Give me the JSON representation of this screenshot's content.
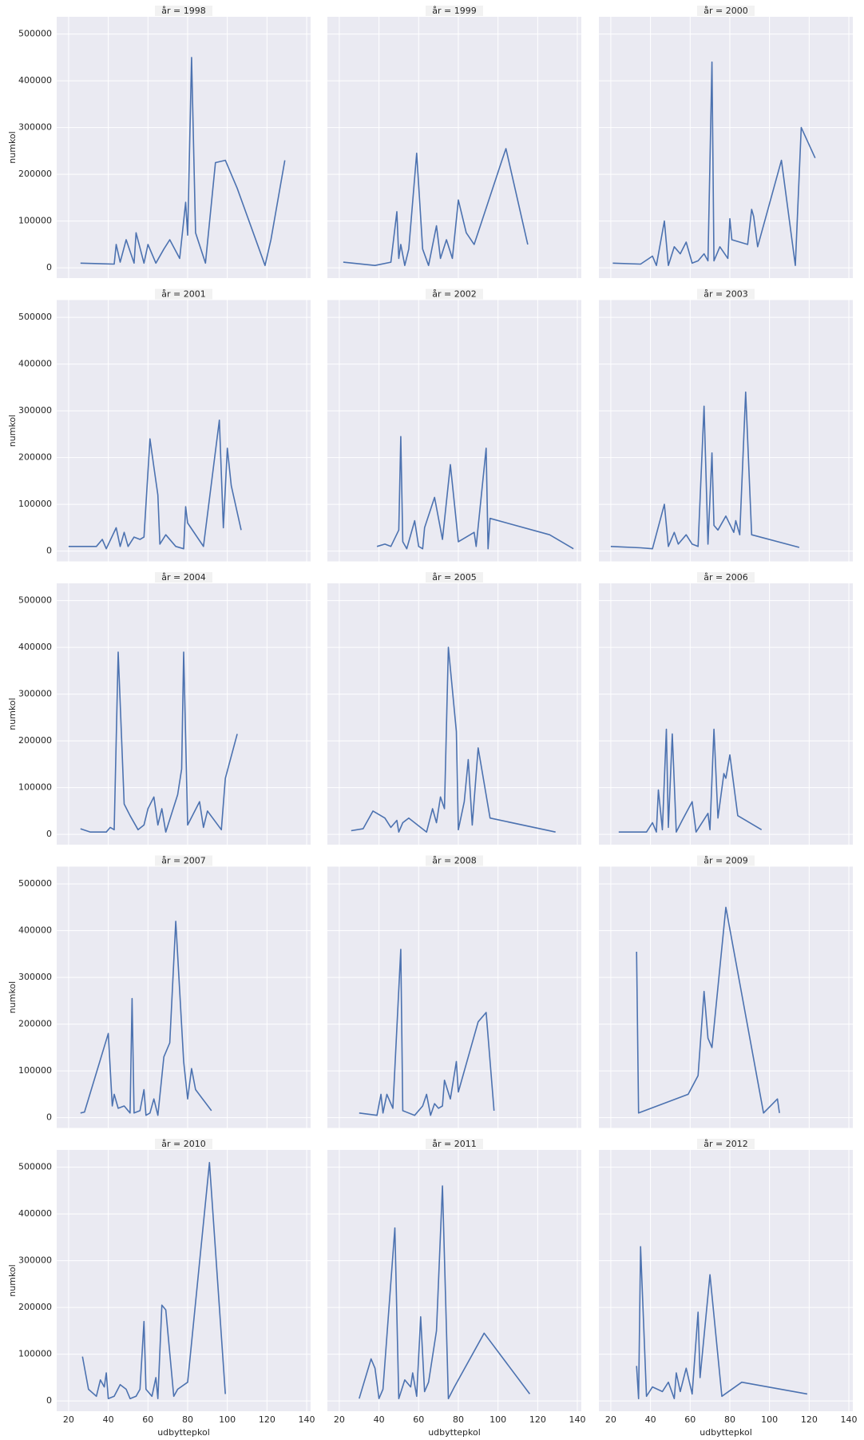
{
  "chart_data": [
    {
      "type": "line",
      "title": "år = 1998",
      "ylabel": "numkol",
      "color": "#4c72b0",
      "xlim": [
        14,
        142
      ],
      "ylim": [
        -22000,
        537000
      ],
      "xticks": [
        20,
        40,
        60,
        80,
        100,
        120,
        140
      ],
      "yticks": [
        0,
        100000,
        200000,
        300000,
        400000,
        500000
      ],
      "x": [
        26,
        43,
        44,
        46,
        49,
        53,
        54,
        58,
        60,
        64,
        68,
        71,
        76,
        79,
        80,
        82,
        84,
        89,
        94,
        99,
        105,
        119,
        122,
        129
      ],
      "values": [
        10000,
        8000,
        50000,
        12000,
        60000,
        10000,
        75000,
        10000,
        50000,
        10000,
        40000,
        60000,
        20000,
        140000,
        70000,
        450000,
        75000,
        10000,
        225000,
        230000,
        170000,
        5000,
        60000,
        230000
      ]
    },
    {
      "type": "line",
      "title": "år = 1999",
      "color": "#4c72b0",
      "xlim": [
        14,
        142
      ],
      "ylim": [
        -22000,
        537000
      ],
      "xticks": [
        20,
        40,
        60,
        80,
        100,
        120,
        140
      ],
      "yticks": [
        0,
        100000,
        200000,
        300000,
        400000,
        500000
      ],
      "x": [
        22,
        38,
        46,
        49,
        50,
        51,
        53,
        55,
        59,
        62,
        65,
        69,
        71,
        74,
        77,
        80,
        84,
        88,
        102,
        104,
        115
      ],
      "values": [
        12000,
        5000,
        12000,
        120000,
        20000,
        50000,
        5000,
        40000,
        245000,
        40000,
        5000,
        90000,
        20000,
        60000,
        20000,
        145000,
        75000,
        50000,
        230000,
        255000,
        50000
      ]
    },
    {
      "type": "line",
      "title": "år = 2000",
      "color": "#4c72b0",
      "xlim": [
        14,
        142
      ],
      "ylim": [
        -22000,
        537000
      ],
      "xticks": [
        20,
        40,
        60,
        80,
        100,
        120,
        140
      ],
      "yticks": [
        0,
        100000,
        200000,
        300000,
        400000,
        500000
      ],
      "x": [
        21,
        35,
        41,
        43,
        47,
        49,
        52,
        55,
        58,
        61,
        64,
        67,
        69,
        71,
        72,
        75,
        79,
        80,
        81,
        89,
        91,
        92,
        94,
        106,
        113,
        116,
        123
      ],
      "values": [
        10000,
        8000,
        25000,
        5000,
        100000,
        5000,
        45000,
        30000,
        55000,
        10000,
        15000,
        30000,
        15000,
        440000,
        15000,
        45000,
        20000,
        105000,
        60000,
        50000,
        125000,
        110000,
        45000,
        230000,
        5000,
        300000,
        235000
      ]
    },
    {
      "type": "line",
      "title": "år = 2001",
      "ylabel": "numkol",
      "color": "#4c72b0",
      "xlim": [
        14,
        142
      ],
      "ylim": [
        -22000,
        537000
      ],
      "xticks": [
        20,
        40,
        60,
        80,
        100,
        120,
        140
      ],
      "yticks": [
        0,
        100000,
        200000,
        300000,
        400000,
        500000
      ],
      "x": [
        20,
        34,
        37,
        39,
        44,
        46,
        48,
        50,
        53,
        56,
        58,
        61,
        63,
        65,
        66,
        69,
        74,
        78,
        79,
        80,
        88,
        96,
        98,
        100,
        102,
        107
      ],
      "values": [
        10000,
        10000,
        25000,
        5000,
        50000,
        10000,
        40000,
        10000,
        30000,
        25000,
        30000,
        240000,
        180000,
        120000,
        15000,
        35000,
        10000,
        5000,
        95000,
        60000,
        10000,
        280000,
        50000,
        220000,
        140000,
        45000
      ]
    },
    {
      "type": "line",
      "title": "år = 2002",
      "color": "#4c72b0",
      "xlim": [
        14,
        142
      ],
      "ylim": [
        -22000,
        537000
      ],
      "xticks": [
        20,
        40,
        60,
        80,
        100,
        120,
        140
      ],
      "yticks": [
        0,
        100000,
        200000,
        300000,
        400000,
        500000
      ],
      "x": [
        39,
        43,
        46,
        50,
        51,
        52,
        54,
        58,
        60,
        62,
        63,
        68,
        72,
        76,
        80,
        88,
        89,
        94,
        95,
        96,
        126,
        138
      ],
      "values": [
        10000,
        15000,
        10000,
        45000,
        245000,
        20000,
        5000,
        65000,
        10000,
        5000,
        50000,
        115000,
        25000,
        185000,
        20000,
        40000,
        10000,
        220000,
        5000,
        70000,
        35000,
        5000
      ]
    },
    {
      "type": "line",
      "title": "år = 2003",
      "color": "#4c72b0",
      "xlim": [
        14,
        142
      ],
      "ylim": [
        -22000,
        537000
      ],
      "xticks": [
        20,
        40,
        60,
        80,
        100,
        120,
        140
      ],
      "yticks": [
        0,
        100000,
        200000,
        300000,
        400000,
        500000
      ],
      "x": [
        20,
        35,
        41,
        47,
        49,
        52,
        54,
        58,
        61,
        64,
        67,
        69,
        71,
        72,
        74,
        78,
        82,
        83,
        85,
        88,
        91,
        115
      ],
      "values": [
        10000,
        7000,
        5000,
        100000,
        10000,
        40000,
        15000,
        35000,
        15000,
        10000,
        310000,
        15000,
        210000,
        55000,
        45000,
        75000,
        40000,
        65000,
        35000,
        340000,
        35000,
        8000
      ]
    },
    {
      "type": "line",
      "title": "år = 2004",
      "ylabel": "numkol",
      "color": "#4c72b0",
      "xlim": [
        14,
        142
      ],
      "ylim": [
        -22000,
        537000
      ],
      "xticks": [
        20,
        40,
        60,
        80,
        100,
        120,
        140
      ],
      "yticks": [
        0,
        100000,
        200000,
        300000,
        400000,
        500000
      ],
      "x": [
        26,
        31,
        39,
        41,
        43,
        45,
        48,
        51,
        55,
        58,
        60,
        63,
        65,
        67,
        69,
        75,
        77,
        78,
        80,
        86,
        88,
        90,
        97,
        99,
        105
      ],
      "values": [
        12000,
        5000,
        5000,
        15000,
        10000,
        390000,
        65000,
        40000,
        10000,
        20000,
        55000,
        80000,
        20000,
        55000,
        5000,
        85000,
        140000,
        390000,
        20000,
        70000,
        15000,
        50000,
        10000,
        120000,
        215000
      ]
    },
    {
      "type": "line",
      "title": "år = 2005",
      "color": "#4c72b0",
      "xlim": [
        14,
        142
      ],
      "ylim": [
        -22000,
        537000
      ],
      "xticks": [
        20,
        40,
        60,
        80,
        100,
        120,
        140
      ],
      "yticks": [
        0,
        100000,
        200000,
        300000,
        400000,
        500000
      ],
      "x": [
        26,
        32,
        37,
        43,
        46,
        49,
        50,
        52,
        55,
        64,
        67,
        69,
        71,
        73,
        75,
        79,
        80,
        83,
        85,
        87,
        90,
        96,
        129
      ],
      "values": [
        8000,
        12000,
        50000,
        35000,
        15000,
        30000,
        5000,
        25000,
        35000,
        5000,
        55000,
        25000,
        80000,
        55000,
        400000,
        220000,
        10000,
        70000,
        160000,
        20000,
        185000,
        35000,
        5000
      ]
    },
    {
      "type": "line",
      "title": "år = 2006",
      "color": "#4c72b0",
      "xlim": [
        14,
        142
      ],
      "ylim": [
        -22000,
        537000
      ],
      "xticks": [
        20,
        40,
        60,
        80,
        100,
        120,
        140
      ],
      "yticks": [
        0,
        100000,
        200000,
        300000,
        400000,
        500000
      ],
      "x": [
        24,
        38,
        41,
        43,
        44,
        46,
        48,
        49,
        51,
        53,
        56,
        61,
        63,
        69,
        70,
        72,
        74,
        77,
        78,
        80,
        84,
        96
      ],
      "values": [
        5000,
        5000,
        25000,
        5000,
        95000,
        10000,
        225000,
        15000,
        215000,
        5000,
        30000,
        70000,
        5000,
        45000,
        10000,
        225000,
        35000,
        130000,
        120000,
        170000,
        40000,
        10000
      ]
    },
    {
      "type": "line",
      "title": "år = 2007",
      "ylabel": "numkol",
      "color": "#4c72b0",
      "xlim": [
        14,
        142
      ],
      "ylim": [
        -22000,
        537000
      ],
      "xticks": [
        20,
        40,
        60,
        80,
        100,
        120,
        140
      ],
      "yticks": [
        0,
        100000,
        200000,
        300000,
        400000,
        500000
      ],
      "x": [
        26,
        28,
        40,
        42,
        43,
        45,
        48,
        51,
        52,
        53,
        56,
        58,
        59,
        61,
        63,
        65,
        68,
        71,
        74,
        78,
        80,
        82,
        84,
        92
      ],
      "values": [
        10000,
        12000,
        180000,
        25000,
        50000,
        20000,
        25000,
        10000,
        255000,
        10000,
        15000,
        60000,
        5000,
        10000,
        40000,
        5000,
        130000,
        160000,
        420000,
        120000,
        40000,
        105000,
        60000,
        15000
      ]
    },
    {
      "type": "line",
      "title": "år = 2008",
      "color": "#4c72b0",
      "xlim": [
        14,
        142
      ],
      "ylim": [
        -22000,
        537000
      ],
      "xticks": [
        20,
        40,
        60,
        80,
        100,
        120,
        140
      ],
      "yticks": [
        0,
        100000,
        200000,
        300000,
        400000,
        500000
      ],
      "x": [
        30,
        39,
        41,
        42,
        44,
        47,
        51,
        52,
        58,
        62,
        64,
        66,
        68,
        70,
        72,
        73,
        76,
        79,
        80,
        90,
        94,
        98
      ],
      "values": [
        10000,
        5000,
        50000,
        10000,
        50000,
        20000,
        360000,
        15000,
        5000,
        25000,
        50000,
        5000,
        30000,
        20000,
        25000,
        80000,
        40000,
        120000,
        55000,
        205000,
        225000,
        15000
      ]
    },
    {
      "type": "line",
      "title": "år = 2009",
      "color": "#4c72b0",
      "xlim": [
        14,
        142
      ],
      "ylim": [
        -22000,
        537000
      ],
      "xticks": [
        20,
        40,
        60,
        80,
        100,
        120,
        140
      ],
      "yticks": [
        0,
        100000,
        200000,
        300000,
        400000,
        500000
      ],
      "x": [
        33,
        34,
        59,
        64,
        67,
        69,
        71,
        78,
        97,
        104,
        105
      ],
      "values": [
        355000,
        10000,
        50000,
        90000,
        270000,
        170000,
        150000,
        450000,
        10000,
        40000,
        10000
      ]
    },
    {
      "type": "line",
      "title": "år = 2010",
      "ylabel": "numkol",
      "xlabel": "udbyttepkol",
      "color": "#4c72b0",
      "xlim": [
        14,
        142
      ],
      "ylim": [
        -22000,
        537000
      ],
      "xticks": [
        20,
        40,
        60,
        80,
        100,
        120,
        140
      ],
      "yticks": [
        0,
        100000,
        200000,
        300000,
        400000,
        500000
      ],
      "x": [
        27,
        30,
        34,
        36,
        38,
        39,
        40,
        43,
        46,
        49,
        51,
        54,
        56,
        58,
        59,
        62,
        64,
        65,
        67,
        69,
        73,
        75,
        80,
        91,
        99
      ],
      "values": [
        95000,
        25000,
        10000,
        45000,
        30000,
        60000,
        5000,
        10000,
        35000,
        25000,
        5000,
        10000,
        25000,
        170000,
        25000,
        10000,
        50000,
        5000,
        205000,
        195000,
        10000,
        25000,
        40000,
        510000,
        15000
      ]
    },
    {
      "type": "line",
      "title": "år = 2011",
      "xlabel": "udbyttepkol",
      "color": "#4c72b0",
      "xlim": [
        14,
        142
      ],
      "ylim": [
        -22000,
        537000
      ],
      "xticks": [
        20,
        40,
        60,
        80,
        100,
        120,
        140
      ],
      "yticks": [
        0,
        100000,
        200000,
        300000,
        400000,
        500000
      ],
      "x": [
        30,
        36,
        38,
        40,
        42,
        48,
        50,
        53,
        56,
        57,
        59,
        61,
        63,
        65,
        69,
        72,
        75,
        78,
        93,
        116
      ],
      "values": [
        5000,
        90000,
        70000,
        5000,
        25000,
        370000,
        5000,
        45000,
        30000,
        60000,
        10000,
        180000,
        20000,
        40000,
        150000,
        460000,
        5000,
        30000,
        145000,
        15000
      ]
    },
    {
      "type": "line",
      "title": "år = 2012",
      "xlabel": "udbyttepkol",
      "color": "#4c72b0",
      "xlim": [
        14,
        142
      ],
      "ylim": [
        -22000,
        537000
      ],
      "xticks": [
        20,
        40,
        60,
        80,
        100,
        120,
        140
      ],
      "yticks": [
        0,
        100000,
        200000,
        300000,
        400000,
        500000
      ],
      "x": [
        33,
        34,
        35,
        38,
        41,
        46,
        49,
        52,
        53,
        55,
        58,
        61,
        64,
        65,
        70,
        76,
        86,
        119
      ],
      "values": [
        75000,
        5000,
        330000,
        10000,
        30000,
        20000,
        40000,
        5000,
        60000,
        20000,
        70000,
        15000,
        190000,
        50000,
        270000,
        10000,
        40000,
        15000
      ]
    }
  ]
}
